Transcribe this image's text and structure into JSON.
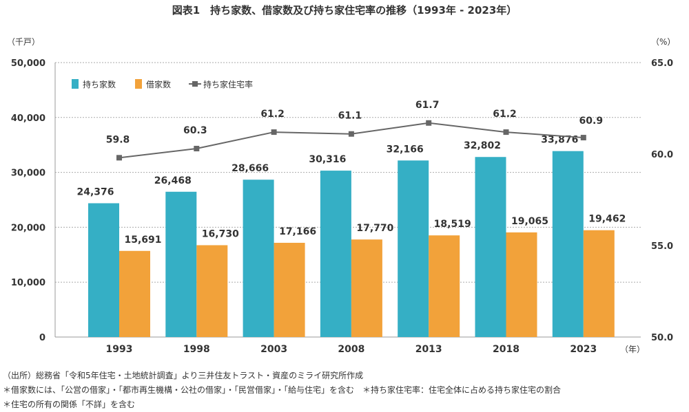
{
  "chart_data": {
    "type": "bar+line",
    "title": "図表1　持ち家数、借家数及び持ち家住宅率の推移（1993年 - 2023年）",
    "left_axis_unit": "（千戸）",
    "right_axis_unit": "（%）",
    "x_unit": "（年）",
    "categories": [
      "1993",
      "1998",
      "2003",
      "2008",
      "2013",
      "2018",
      "2023"
    ],
    "left_ylim": [
      0,
      50000
    ],
    "left_ticks": [
      "0",
      "10,000",
      "20,000",
      "30,000",
      "40,000",
      "50,000"
    ],
    "right_ylim": [
      50.0,
      65.0
    ],
    "right_ticks": [
      "50.0",
      "55.0",
      "60.0",
      "65.0"
    ],
    "grid": true,
    "legend_placement": "top-left",
    "series": [
      {
        "name": "持ち家数",
        "type": "bar",
        "axis": "left",
        "color": "#35AFC5",
        "values": [
          24376,
          26468,
          28666,
          30316,
          32166,
          32802,
          33876
        ],
        "labels": [
          "24,376",
          "26,468",
          "28,666",
          "30,316",
          "32,166",
          "32,802",
          "33,876"
        ]
      },
      {
        "name": "借家数",
        "type": "bar",
        "axis": "left",
        "color": "#F2A23A",
        "values": [
          15691,
          16730,
          17166,
          17770,
          18519,
          19065,
          19462
        ],
        "labels": [
          "15,691",
          "16,730",
          "17,166",
          "17,770",
          "18,519",
          "19,065",
          "19,462"
        ]
      },
      {
        "name": "持ち家住宅率",
        "type": "line",
        "axis": "right",
        "color": "#666666",
        "values": [
          59.8,
          60.3,
          61.2,
          61.1,
          61.7,
          61.2,
          60.9
        ],
        "labels": [
          "59.8",
          "60.3",
          "61.2",
          "61.1",
          "61.7",
          "61.2",
          "60.9"
        ]
      }
    ]
  },
  "notes": [
    "（出所）総務省「令和5年住宅・土地統計調査」より三井住友トラスト・資産のミライ研究所作成",
    "＊借家数には、「公営の借家」・「都市再生機構・公社の借家」・「民営借家」・「給与住宅」を含む　＊持ち家住宅率：住宅全体に占める持ち家住宅の割合",
    "＊住宅の所有の関係「不詳」を含む"
  ]
}
